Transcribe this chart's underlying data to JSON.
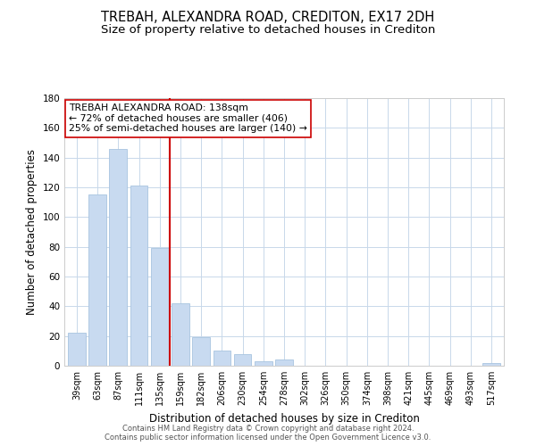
{
  "title": "TREBAH, ALEXANDRA ROAD, CREDITON, EX17 2DH",
  "subtitle": "Size of property relative to detached houses in Crediton",
  "xlabel": "Distribution of detached houses by size in Crediton",
  "ylabel": "Number of detached properties",
  "bar_labels": [
    "39sqm",
    "63sqm",
    "87sqm",
    "111sqm",
    "135sqm",
    "159sqm",
    "182sqm",
    "206sqm",
    "230sqm",
    "254sqm",
    "278sqm",
    "302sqm",
    "326sqm",
    "350sqm",
    "374sqm",
    "398sqm",
    "421sqm",
    "445sqm",
    "469sqm",
    "493sqm",
    "517sqm"
  ],
  "bar_values": [
    22,
    115,
    146,
    121,
    79,
    42,
    19,
    10,
    8,
    3,
    4,
    0,
    0,
    0,
    0,
    0,
    0,
    0,
    0,
    0,
    2
  ],
  "bar_color": "#c8daf0",
  "bar_edge_color": "#a8c4e0",
  "vline_x": 4.5,
  "vline_color": "#cc0000",
  "ylim": [
    0,
    180
  ],
  "yticks": [
    0,
    20,
    40,
    60,
    80,
    100,
    120,
    140,
    160,
    180
  ],
  "annotation_text_line1": "TREBAH ALEXANDRA ROAD: 138sqm",
  "annotation_text_line2": "← 72% of detached houses are smaller (406)",
  "annotation_text_line3": "25% of semi-detached houses are larger (140) →",
  "footer_line1": "Contains HM Land Registry data © Crown copyright and database right 2024.",
  "footer_line2": "Contains public sector information licensed under the Open Government Licence v3.0.",
  "background_color": "#ffffff",
  "grid_color": "#c8d8ea",
  "title_fontsize": 10.5,
  "subtitle_fontsize": 9.5,
  "tick_label_fontsize": 7,
  "ylabel_fontsize": 8.5,
  "xlabel_fontsize": 8.5,
  "annotation_fontsize": 7.8,
  "footer_fontsize": 6.0
}
